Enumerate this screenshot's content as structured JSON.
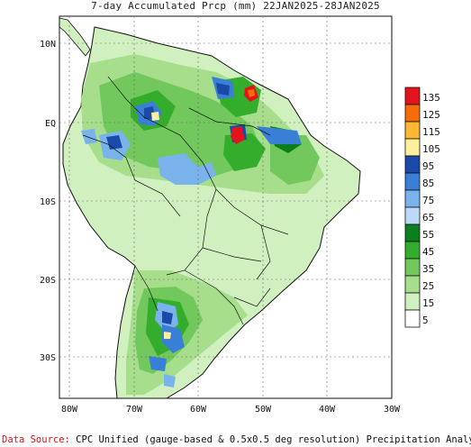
{
  "title": "7-day Accumulated Prcp (mm) 22JAN2025-28JAN2025",
  "map": {
    "lat_labels": [
      "10N",
      "EQ",
      "10S",
      "20S",
      "30S"
    ],
    "lon_labels": [
      "80W",
      "70W",
      "60W",
      "50W",
      "40W",
      "30W"
    ]
  },
  "legend": {
    "levels": [
      "135",
      "125",
      "115",
      "105",
      "95",
      "85",
      "75",
      "65",
      "55",
      "45",
      "35",
      "25",
      "15",
      "5"
    ],
    "colors": [
      "#e3141b",
      "#f46d0a",
      "#fdb733",
      "#fef09d",
      "#1a49a8",
      "#3a7fd6",
      "#7ab2ec",
      "#bcd9f7",
      "#0b7f1c",
      "#34ad2d",
      "#72c85c",
      "#a6de8c",
      "#d1f0c0",
      "#ffffff"
    ]
  },
  "footer": {
    "source_label": "Data Source:",
    "source_text": " CPC Unified (gauge-based & 0.5x0.5 deg resolution) Precipitation Analysis"
  }
}
